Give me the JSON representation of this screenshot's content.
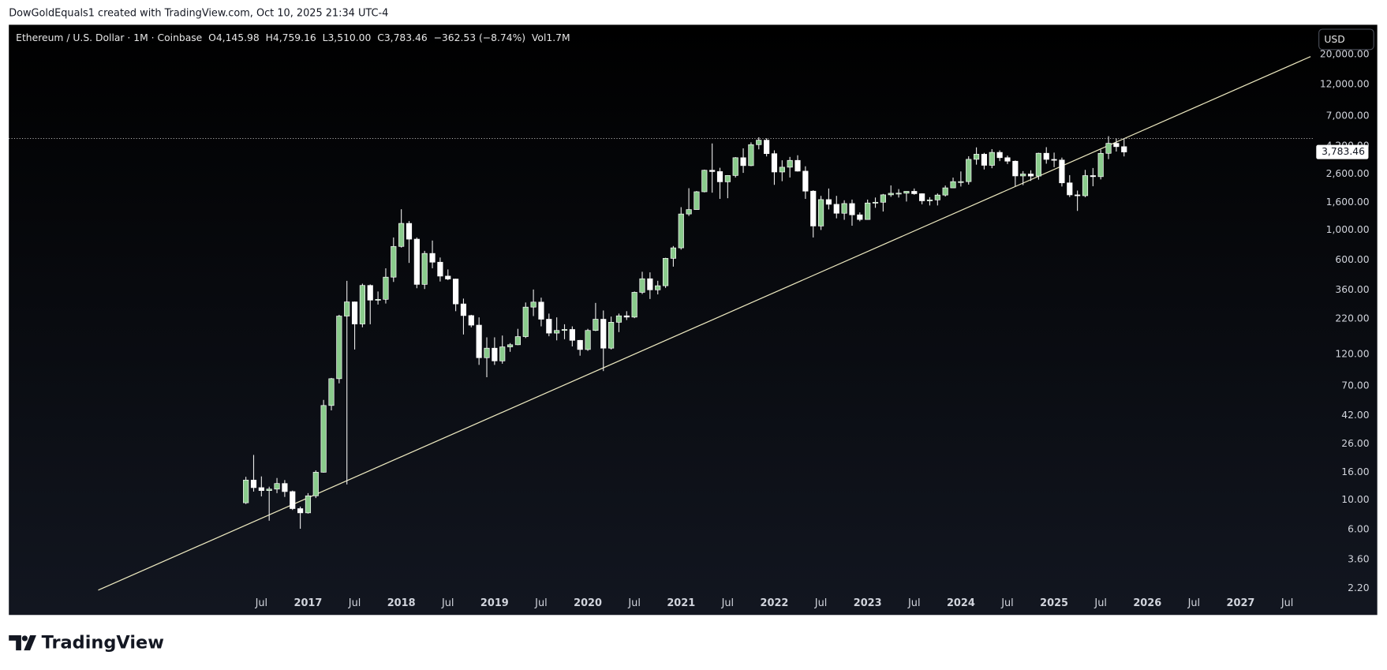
{
  "header": {
    "attribution": "DowGoldEquals1 created with TradingView.com, Oct 10, 2025 21:34 UTC-4",
    "brand": "TradingView"
  },
  "chart_data": {
    "type": "candlestick",
    "title": "Ethereum / U.S. Dollar · 1M · Coinbase",
    "status": [
      "O4,145.98",
      "H4,759.16",
      "L3,510.00",
      "C3,783.46",
      "−362.53 (−8.74%)",
      "Vol1.7M"
    ],
    "currency": "USD",
    "x": [
      "2016-05",
      "2016-06",
      "2016-07",
      "2016-08",
      "2016-09",
      "2016-10",
      "2016-11",
      "2016-12",
      "2017-01",
      "2017-02",
      "2017-03",
      "2017-04",
      "2017-05",
      "2017-06",
      "2017-07",
      "2017-08",
      "2017-09",
      "2017-10",
      "2017-11",
      "2017-12",
      "2018-01",
      "2018-02",
      "2018-03",
      "2018-04",
      "2018-05",
      "2018-06",
      "2018-07",
      "2018-08",
      "2018-09",
      "2018-10",
      "2018-11",
      "2018-12",
      "2019-01",
      "2019-02",
      "2019-03",
      "2019-04",
      "2019-05",
      "2019-06",
      "2019-07",
      "2019-08",
      "2019-09",
      "2019-10",
      "2019-11",
      "2019-12",
      "2020-01",
      "2020-02",
      "2020-03",
      "2020-04",
      "2020-05",
      "2020-06",
      "2020-07",
      "2020-08",
      "2020-09",
      "2020-10",
      "2020-11",
      "2020-12",
      "2021-01",
      "2021-02",
      "2021-03",
      "2021-04",
      "2021-05",
      "2021-06",
      "2021-07",
      "2021-08",
      "2021-09",
      "2021-10",
      "2021-11",
      "2021-12",
      "2022-01",
      "2022-02",
      "2022-03",
      "2022-04",
      "2022-05",
      "2022-06",
      "2022-07",
      "2022-08",
      "2022-09",
      "2022-10",
      "2022-11",
      "2022-12",
      "2023-01",
      "2023-02",
      "2023-03",
      "2023-04",
      "2023-05",
      "2023-06",
      "2023-07",
      "2023-08",
      "2023-09",
      "2023-10",
      "2023-11",
      "2023-12",
      "2024-01",
      "2024-02",
      "2024-03",
      "2024-04",
      "2024-05",
      "2024-06",
      "2024-07",
      "2024-08",
      "2024-09",
      "2024-10",
      "2024-11",
      "2024-12",
      "2025-01",
      "2025-02",
      "2025-03",
      "2025-04",
      "2025-05",
      "2025-06",
      "2025-07",
      "2025-08",
      "2025-09",
      "2025-10"
    ],
    "open": [
      9.5,
      14.0,
      12.3,
      11.7,
      12.0,
      13.2,
      11.5,
      8.6,
      8.0,
      10.7,
      16.0,
      50,
      79,
      230,
      293,
      201,
      388,
      302,
      306,
      447,
      755,
      1119,
      855,
      395,
      670,
      577,
      455,
      433,
      283,
      232,
      197,
      113,
      133,
      107,
      136,
      141,
      162,
      268,
      292,
      218,
      172,
      180,
      183,
      152,
      130,
      180,
      218,
      133,
      207,
      231,
      226,
      345,
      435,
      360,
      386,
      616,
      737,
      1314,
      1417,
      1920,
      2772,
      2710,
      2275,
      2535,
      3434,
      3000,
      4290,
      4630,
      3680,
      2690,
      2920,
      3280,
      2730,
      1940,
      1070,
      1680,
      1550,
      1330,
      1570,
      1295,
      1196,
      1585,
      1605,
      1822,
      1870,
      1874,
      1934,
      1857,
      1645,
      1671,
      1815,
      2052,
      2282,
      2283,
      3340,
      3645,
      3015,
      3760,
      3435,
      3235,
      2515,
      2600,
      2510,
      3705,
      3335,
      3300,
      2235,
      1820,
      1795,
      2530,
      2485,
      3700,
      4390,
      4145.98
    ],
    "high": [
      14.8,
      21.5,
      14.9,
      12.5,
      14.5,
      14.0,
      11.7,
      8.9,
      11.2,
      16.5,
      55,
      80,
      235,
      420,
      295,
      400,
      395,
      350,
      520,
      880,
      1424,
      1165,
      880,
      700,
      835,
      625,
      510,
      435,
      310,
      235,
      225,
      160,
      160,
      165,
      145,
      185,
      290,
      362,
      315,
      240,
      225,
      200,
      193,
      153,
      185,
      288,
      253,
      228,
      240,
      250,
      350,
      490,
      485,
      420,
      622,
      760,
      1476,
      2040,
      1945,
      2800,
      4380,
      2890,
      2550,
      3470,
      4030,
      4460,
      4868,
      4780,
      3895,
      3285,
      3480,
      3580,
      2965,
      1970,
      1790,
      2030,
      1790,
      1660,
      1680,
      1350,
      1680,
      1740,
      1850,
      2140,
      2010,
      1930,
      2030,
      1870,
      1750,
      1865,
      2135,
      2445,
      2715,
      3520,
      4095,
      3730,
      3975,
      3890,
      3560,
      3275,
      2730,
      2770,
      3740,
      4110,
      3745,
      3440,
      2550,
      1960,
      2790,
      2880,
      3940,
      4956,
      4770,
      4759.16
    ],
    "low": [
      9.3,
      11.5,
      10.6,
      7.0,
      11.2,
      10.5,
      8.4,
      6.1,
      7.9,
      10.3,
      15.9,
      46,
      73,
      13,
      130,
      190,
      200,
      280,
      285,
      412,
      740,
      570,
      370,
      365,
      520,
      415,
      425,
      250,
      168,
      190,
      100,
      81,
      100,
      102,
      125,
      140,
      158,
      230,
      193,
      163,
      152,
      155,
      137,
      117,
      127,
      178,
      90,
      130,
      175,
      215,
      222,
      335,
      308,
      333,
      372,
      535,
      715,
      1270,
      1425,
      1900,
      1890,
      1700,
      1720,
      2450,
      2650,
      2970,
      3960,
      3510,
      2160,
      2300,
      2450,
      2710,
      1700,
      880,
      1000,
      1420,
      1220,
      1190,
      1075,
      1160,
      1190,
      1460,
      1370,
      1760,
      1740,
      1625,
      1825,
      1550,
      1520,
      1520,
      1770,
      2050,
      2100,
      2170,
      3050,
      2810,
      2870,
      3240,
      3080,
      2110,
      2150,
      2310,
      2360,
      3100,
      2920,
      2100,
      1755,
      1385,
      1750,
      2110,
      2370,
      3350,
      3815,
      3510.0
    ],
    "close": [
      14.0,
      12.3,
      11.7,
      12.0,
      13.2,
      11.5,
      8.6,
      8.0,
      10.7,
      16.0,
      50,
      79,
      230,
      293,
      201,
      388,
      302,
      306,
      447,
      755,
      1119,
      855,
      395,
      670,
      577,
      455,
      433,
      283,
      232,
      197,
      113,
      133,
      107,
      136,
      141,
      162,
      268,
      292,
      218,
      172,
      180,
      183,
      152,
      130,
      180,
      218,
      133,
      207,
      231,
      226,
      345,
      435,
      360,
      386,
      616,
      737,
      1314,
      1417,
      1920,
      2772,
      2710,
      2275,
      2535,
      3434,
      3000,
      4290,
      4630,
      3680,
      2690,
      2920,
      3280,
      2730,
      1940,
      1070,
      1680,
      1550,
      1330,
      1570,
      1295,
      1196,
      1585,
      1605,
      1822,
      1870,
      1874,
      1934,
      1857,
      1645,
      1671,
      1815,
      2052,
      2282,
      2283,
      3340,
      3645,
      3015,
      3760,
      3435,
      3235,
      2515,
      2600,
      2510,
      3705,
      3335,
      3300,
      2235,
      1820,
      1795,
      2530,
      2485,
      3700,
      4390,
      4146,
      3783.46
    ],
    "up_color": "#8acb8c",
    "down_color": "#ffffff",
    "wick_color": "#e8e8e8",
    "log_scale": true,
    "grid": false,
    "xlim": [
      "2013-11",
      "2027-10"
    ],
    "xticks": [
      {
        "value": "2016-07",
        "label": "Jul"
      },
      {
        "value": "2017-01",
        "label": "2017"
      },
      {
        "value": "2017-07",
        "label": "Jul"
      },
      {
        "value": "2018-01",
        "label": "2018"
      },
      {
        "value": "2018-07",
        "label": "Jul"
      },
      {
        "value": "2019-01",
        "label": "2019"
      },
      {
        "value": "2019-07",
        "label": "Jul"
      },
      {
        "value": "2020-01",
        "label": "2020"
      },
      {
        "value": "2020-07",
        "label": "Jul"
      },
      {
        "value": "2021-01",
        "label": "2021"
      },
      {
        "value": "2021-07",
        "label": "Jul"
      },
      {
        "value": "2022-01",
        "label": "2022"
      },
      {
        "value": "2022-07",
        "label": "Jul"
      },
      {
        "value": "2023-01",
        "label": "2023"
      },
      {
        "value": "2023-07",
        "label": "Jul"
      },
      {
        "value": "2024-01",
        "label": "2024"
      },
      {
        "value": "2024-07",
        "label": "Jul"
      },
      {
        "value": "2025-01",
        "label": "2025"
      },
      {
        "value": "2025-07",
        "label": "Jul"
      },
      {
        "value": "2026-01",
        "label": "2026"
      },
      {
        "value": "2026-07",
        "label": "Jul"
      },
      {
        "value": "2027-01",
        "label": "2027"
      },
      {
        "value": "2027-07",
        "label": "Jul"
      }
    ],
    "ylim": [
      1.4,
      33200
    ],
    "yticks": [
      {
        "value": 20000,
        "label": "20,000.00"
      },
      {
        "value": 12000,
        "label": "12,000.00"
      },
      {
        "value": 7000,
        "label": "7,000.00"
      },
      {
        "value": 4200,
        "label": "4,200.00"
      },
      {
        "value": 2600,
        "label": "2,600.00"
      },
      {
        "value": 1600,
        "label": "1,600.00"
      },
      {
        "value": 1000,
        "label": "1,000.00"
      },
      {
        "value": 600,
        "label": "600.00"
      },
      {
        "value": 360,
        "label": "360.00"
      },
      {
        "value": 220,
        "label": "220.00"
      },
      {
        "value": 120,
        "label": "120.00"
      },
      {
        "value": 70,
        "label": "70.00"
      },
      {
        "value": 42,
        "label": "42.00"
      },
      {
        "value": 26,
        "label": "26.00"
      },
      {
        "value": 16,
        "label": "16.00"
      },
      {
        "value": 10,
        "label": "10.00"
      },
      {
        "value": 6,
        "label": "6.00"
      },
      {
        "value": 3.6,
        "label": "3.60"
      },
      {
        "value": 2.2,
        "label": "2.20"
      }
    ],
    "last_price_label": "3,783.46",
    "trendline": {
      "x": [
        "2014-10",
        "2027-10"
      ],
      "y": [
        2.14,
        19300
      ],
      "color": "#ece8bf"
    }
  }
}
